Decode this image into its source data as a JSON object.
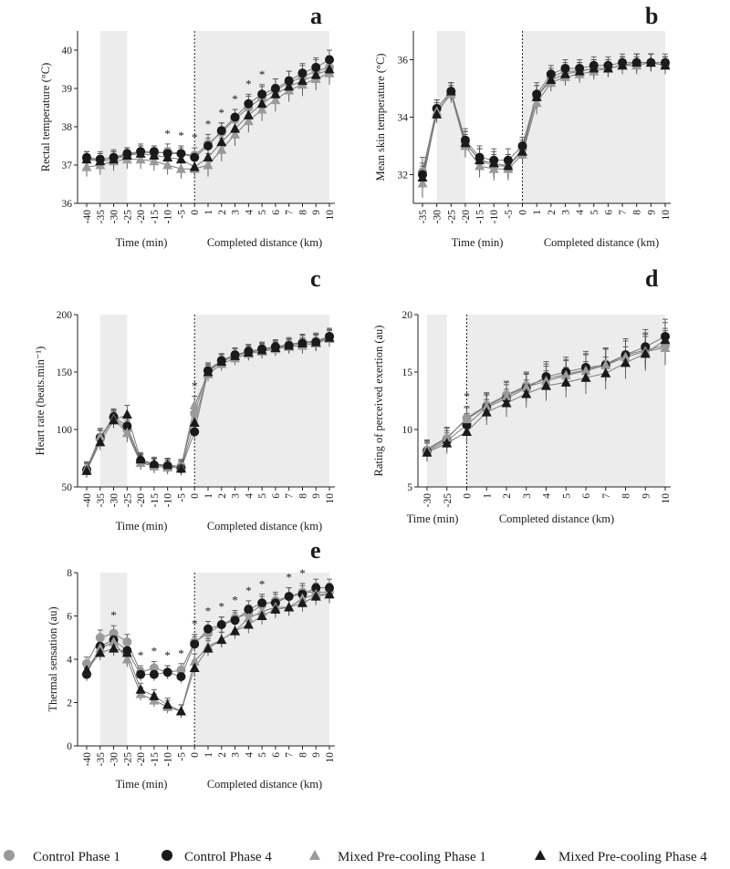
{
  "chart_data": [
    {
      "id": "a",
      "type": "line",
      "panel_label": "a",
      "ylabel": "Rectal temperature (°C)",
      "xlabel_time": "Time (min)",
      "xlabel_distance": "Completed distance (km)",
      "ylim": [
        36,
        40.5
      ],
      "yticks": [
        36,
        37,
        38,
        39,
        40
      ],
      "categories": [
        "-40",
        "-35",
        "-30",
        "-25",
        "-20",
        "-15",
        "-10",
        "-5",
        "0",
        "1",
        "2",
        "3",
        "4",
        "5",
        "6",
        "7",
        "8",
        "9",
        "10"
      ],
      "shaded_ranges": [
        [
          "-35",
          "-25"
        ],
        [
          "0",
          "10"
        ]
      ],
      "divider_at": "0",
      "significant": [
        "-10",
        "-5",
        "0",
        "1",
        "2",
        "3",
        "4",
        "5"
      ],
      "series": [
        {
          "name": "Control Phase 1",
          "values": [
            37.15,
            37.15,
            37.2,
            37.25,
            37.35,
            37.3,
            37.35,
            37.3,
            37.25,
            37.55,
            37.85,
            38.2,
            38.5,
            38.75,
            38.95,
            39.15,
            39.3,
            39.45,
            39.55
          ],
          "error": [
            0.2,
            0.2,
            0.2,
            0.2,
            0.2,
            0.2,
            0.2,
            0.2,
            0.2,
            0.25,
            0.25,
            0.25,
            0.3,
            0.3,
            0.3,
            0.3,
            0.3,
            0.3,
            0.3
          ]
        },
        {
          "name": "Control Phase 4",
          "values": [
            37.2,
            37.15,
            37.2,
            37.3,
            37.35,
            37.35,
            37.3,
            37.3,
            37.2,
            37.5,
            37.9,
            38.25,
            38.6,
            38.85,
            39.0,
            39.2,
            39.4,
            39.55,
            39.75
          ],
          "error": [
            0.15,
            0.15,
            0.15,
            0.15,
            0.15,
            0.15,
            0.15,
            0.15,
            0.15,
            0.2,
            0.2,
            0.2,
            0.25,
            0.25,
            0.25,
            0.25,
            0.25,
            0.25,
            0.25
          ]
        },
        {
          "name": "Mixed Pre-cooling Phase 1",
          "values": [
            36.95,
            37.0,
            37.1,
            37.15,
            37.15,
            37.1,
            37.0,
            36.9,
            36.9,
            37.0,
            37.4,
            37.8,
            38.15,
            38.45,
            38.7,
            38.95,
            39.1,
            39.25,
            39.4
          ],
          "error": [
            0.25,
            0.25,
            0.25,
            0.25,
            0.25,
            0.25,
            0.25,
            0.25,
            0.25,
            0.3,
            0.3,
            0.3,
            0.3,
            0.3,
            0.3,
            0.3,
            0.3,
            0.3,
            0.3
          ]
        },
        {
          "name": "Mixed Pre-cooling Phase 4",
          "values": [
            37.15,
            37.1,
            37.15,
            37.25,
            37.3,
            37.25,
            37.2,
            37.15,
            36.95,
            37.2,
            37.6,
            37.95,
            38.3,
            38.6,
            38.85,
            39.05,
            39.2,
            39.35,
            39.5
          ],
          "error": [
            0.2,
            0.2,
            0.2,
            0.2,
            0.2,
            0.2,
            0.2,
            0.2,
            0.2,
            0.25,
            0.25,
            0.25,
            0.25,
            0.25,
            0.25,
            0.25,
            0.25,
            0.25,
            0.25
          ]
        }
      ]
    },
    {
      "id": "b",
      "type": "line",
      "panel_label": "b",
      "ylabel": "Mean skin temperature (°C)",
      "xlabel_time": "Time (min)",
      "xlabel_distance": "Completed distance (km)",
      "ylim": [
        31,
        37
      ],
      "yticks": [
        32,
        34,
        36
      ],
      "categories": [
        "-35",
        "-30",
        "-25",
        "-20",
        "-15",
        "-10",
        "-5",
        "0",
        "1",
        "2",
        "3",
        "4",
        "5",
        "6",
        "7",
        "8",
        "9",
        "10"
      ],
      "shaded_ranges": [
        [
          "-30",
          "-20"
        ],
        [
          "0",
          "10"
        ]
      ],
      "divider_at": "0",
      "significant": [],
      "series": [
        {
          "name": "Control Phase 1",
          "values": [
            32.1,
            34.3,
            34.9,
            33.1,
            32.5,
            32.3,
            32.3,
            32.9,
            34.7,
            35.4,
            35.6,
            35.6,
            35.7,
            35.7,
            35.8,
            35.9,
            35.9,
            35.8
          ],
          "error": [
            0.5,
            0.3,
            0.3,
            0.4,
            0.4,
            0.4,
            0.4,
            0.3,
            0.4,
            0.3,
            0.3,
            0.3,
            0.3,
            0.3,
            0.3,
            0.3,
            0.3,
            0.3
          ]
        },
        {
          "name": "Control Phase 4",
          "values": [
            32.0,
            34.3,
            34.9,
            33.2,
            32.6,
            32.5,
            32.5,
            33.0,
            34.8,
            35.5,
            35.7,
            35.7,
            35.8,
            35.8,
            35.9,
            35.9,
            35.9,
            35.9
          ],
          "error": [
            0.4,
            0.3,
            0.3,
            0.4,
            0.4,
            0.4,
            0.4,
            0.3,
            0.4,
            0.3,
            0.3,
            0.3,
            0.3,
            0.3,
            0.3,
            0.3,
            0.3,
            0.3
          ]
        },
        {
          "name": "Mixed Pre-cooling Phase 1",
          "values": [
            31.7,
            34.2,
            34.8,
            33.0,
            32.3,
            32.2,
            32.2,
            32.7,
            34.5,
            35.2,
            35.4,
            35.5,
            35.6,
            35.7,
            35.8,
            35.8,
            35.9,
            35.8
          ],
          "error": [
            0.5,
            0.3,
            0.3,
            0.4,
            0.4,
            0.4,
            0.4,
            0.3,
            0.4,
            0.3,
            0.3,
            0.3,
            0.3,
            0.3,
            0.3,
            0.3,
            0.3,
            0.3
          ]
        },
        {
          "name": "Mixed Pre-cooling Phase 4",
          "values": [
            31.9,
            34.1,
            34.9,
            33.1,
            32.5,
            32.4,
            32.3,
            32.8,
            34.7,
            35.3,
            35.5,
            35.6,
            35.7,
            35.7,
            35.8,
            35.9,
            35.9,
            35.8
          ],
          "error": [
            0.4,
            0.3,
            0.3,
            0.4,
            0.4,
            0.4,
            0.4,
            0.3,
            0.4,
            0.3,
            0.3,
            0.3,
            0.3,
            0.3,
            0.3,
            0.3,
            0.3,
            0.3
          ]
        }
      ]
    },
    {
      "id": "c",
      "type": "line",
      "panel_label": "c",
      "ylabel": "Heart rate (beats.min⁻¹)",
      "xlabel_time": "Time (min)",
      "xlabel_distance": "Completed distance (km)",
      "ylim": [
        50,
        200
      ],
      "yticks": [
        50,
        100,
        150,
        200
      ],
      "categories": [
        "-40",
        "-35",
        "-30",
        "-25",
        "-20",
        "-15",
        "-10",
        "-5",
        "0",
        "1",
        "2",
        "3",
        "4",
        "5",
        "6",
        "7",
        "8",
        "9",
        "10"
      ],
      "shaded_ranges": [
        [
          "-35",
          "-25"
        ],
        [
          "0",
          "10"
        ]
      ],
      "divider_at": "0",
      "significant": [
        "0"
      ],
      "series": [
        {
          "name": "Control Phase 1",
          "values": [
            64,
            92,
            110,
            100,
            72,
            69,
            69,
            68,
            114,
            152,
            160,
            165,
            168,
            170,
            172,
            174,
            176,
            177,
            181
          ],
          "error": [
            6,
            7,
            7,
            8,
            6,
            6,
            6,
            6,
            8,
            6,
            6,
            6,
            6,
            6,
            6,
            6,
            7,
            7,
            7
          ]
        },
        {
          "name": "Control Phase 4",
          "values": [
            65,
            93,
            111,
            103,
            73,
            69,
            68,
            66,
            98,
            151,
            160,
            165,
            168,
            170,
            172,
            173,
            175,
            176,
            181
          ],
          "error": [
            6,
            7,
            7,
            8,
            6,
            6,
            6,
            6,
            8,
            6,
            6,
            6,
            6,
            6,
            6,
            6,
            7,
            7,
            7
          ]
        },
        {
          "name": "Mixed Pre-cooling Phase 1",
          "values": [
            66,
            94,
            109,
            97,
            71,
            68,
            67,
            67,
            121,
            148,
            157,
            162,
            166,
            168,
            170,
            172,
            173,
            175,
            179
          ],
          "error": [
            6,
            7,
            7,
            8,
            6,
            6,
            6,
            6,
            8,
            6,
            6,
            6,
            6,
            6,
            6,
            6,
            7,
            7,
            7
          ]
        },
        {
          "name": "Mixed Pre-cooling Phase 4",
          "values": [
            64,
            89,
            108,
            113,
            74,
            70,
            69,
            66,
            106,
            150,
            159,
            164,
            167,
            169,
            171,
            173,
            175,
            176,
            180
          ],
          "error": [
            6,
            7,
            7,
            8,
            6,
            6,
            6,
            6,
            8,
            6,
            6,
            6,
            6,
            6,
            6,
            6,
            7,
            7,
            7
          ]
        }
      ]
    },
    {
      "id": "d",
      "type": "line",
      "panel_label": "d",
      "ylabel": "Rating of perceived exertion (au)",
      "xlabel_time": "Time (min)",
      "xlabel_distance": "Completed distance (km)",
      "ylim": [
        5,
        20
      ],
      "yticks": [
        5,
        10,
        15,
        20
      ],
      "categories": [
        "-30",
        "-25",
        "0",
        "1",
        "2",
        "3",
        "4",
        "5",
        "6",
        "7",
        "8",
        "9",
        "10"
      ],
      "shaded_ranges": [
        [
          "-30",
          "-25"
        ],
        [
          "0",
          "10"
        ]
      ],
      "divider_at": "0",
      "significant": [
        "0"
      ],
      "series": [
        {
          "name": "Control Phase 1",
          "values": [
            8.2,
            9.2,
            11.0,
            12.1,
            13.0,
            13.8,
            14.4,
            14.8,
            15.2,
            15.7,
            16.5,
            16.9,
            17.3
          ],
          "error": [
            0.8,
            0.9,
            1.0,
            1.1,
            1.2,
            1.2,
            1.3,
            1.3,
            1.4,
            1.4,
            1.4,
            1.5,
            1.5
          ]
        },
        {
          "name": "Control Phase 4",
          "values": [
            8.1,
            9.0,
            10.4,
            11.9,
            12.7,
            13.6,
            14.6,
            15.0,
            15.4,
            15.6,
            16.5,
            17.2,
            18.1
          ],
          "error": [
            0.8,
            0.9,
            1.0,
            1.1,
            1.2,
            1.2,
            1.3,
            1.3,
            1.4,
            1.4,
            1.4,
            1.5,
            1.5
          ]
        },
        {
          "name": "Mixed Pre-cooling Phase 1",
          "values": [
            8.3,
            9.3,
            10.9,
            12.0,
            12.9,
            13.7,
            14.2,
            14.7,
            15.1,
            15.6,
            16.3,
            16.8,
            17.1
          ],
          "error": [
            0.8,
            0.9,
            1.0,
            1.1,
            1.2,
            1.2,
            1.3,
            1.3,
            1.4,
            1.4,
            1.4,
            1.5,
            1.5
          ]
        },
        {
          "name": "Mixed Pre-cooling Phase 4",
          "values": [
            8.0,
            8.8,
            9.8,
            11.5,
            12.3,
            13.1,
            13.8,
            14.1,
            14.5,
            14.9,
            15.8,
            16.6,
            17.8
          ],
          "error": [
            0.8,
            0.9,
            1.0,
            1.1,
            1.2,
            1.2,
            1.3,
            1.3,
            1.4,
            1.4,
            1.4,
            1.5,
            1.5
          ]
        }
      ]
    },
    {
      "id": "e",
      "type": "line",
      "panel_label": "e",
      "ylabel": "Thermal  sensation (au)",
      "xlabel_time": "Time (min)",
      "xlabel_distance": "Completed distance (km)",
      "ylim": [
        0,
        8
      ],
      "yticks": [
        0,
        2,
        4,
        6,
        8
      ],
      "categories": [
        "-40",
        "-35",
        "-30",
        "-25",
        "-20",
        "-15",
        "-10",
        "-5",
        "0",
        "1",
        "2",
        "3",
        "4",
        "5",
        "6",
        "7",
        "8",
        "9",
        "10"
      ],
      "shaded_ranges": [
        [
          "-35",
          "-25"
        ],
        [
          "0",
          "10"
        ]
      ],
      "divider_at": "0",
      "significant": [
        "-30",
        "-20",
        "-15",
        "-10",
        "-5",
        "0",
        "1",
        "2",
        "3",
        "4",
        "5",
        "7",
        "8"
      ],
      "series": [
        {
          "name": "Control Phase 1",
          "values": [
            3.8,
            5.0,
            5.2,
            4.8,
            3.4,
            3.6,
            3.4,
            3.5,
            4.8,
            5.2,
            5.6,
            5.9,
            6.1,
            6.5,
            6.7,
            6.9,
            7.1,
            7.1,
            7.1
          ],
          "error": [
            0.3,
            0.35,
            0.35,
            0.35,
            0.3,
            0.3,
            0.3,
            0.3,
            0.35,
            0.35,
            0.35,
            0.35,
            0.4,
            0.4,
            0.4,
            0.4,
            0.4,
            0.4,
            0.4
          ]
        },
        {
          "name": "Control Phase 4",
          "values": [
            3.3,
            4.6,
            4.9,
            4.4,
            3.3,
            3.3,
            3.4,
            3.2,
            4.7,
            5.4,
            5.6,
            5.8,
            6.3,
            6.6,
            6.6,
            6.9,
            7.0,
            7.3,
            7.3
          ],
          "error": [
            0.3,
            0.35,
            0.35,
            0.35,
            0.3,
            0.3,
            0.3,
            0.3,
            0.35,
            0.35,
            0.35,
            0.35,
            0.4,
            0.4,
            0.4,
            0.4,
            0.4,
            0.4,
            0.4
          ]
        },
        {
          "name": "Mixed Pre-cooling Phase 1",
          "values": [
            3.5,
            4.5,
            4.8,
            4.0,
            2.4,
            2.1,
            1.8,
            1.6,
            3.9,
            4.6,
            4.9,
            5.3,
            5.9,
            6.2,
            6.4,
            6.4,
            6.8,
            7.0,
            7.0
          ],
          "error": [
            0.3,
            0.35,
            0.35,
            0.35,
            0.3,
            0.3,
            0.3,
            0.3,
            0.35,
            0.35,
            0.35,
            0.35,
            0.4,
            0.4,
            0.4,
            0.4,
            0.4,
            0.4,
            0.4
          ]
        },
        {
          "name": "Mixed Pre-cooling Phase 4",
          "values": [
            3.5,
            4.3,
            4.5,
            4.3,
            2.6,
            2.3,
            1.9,
            1.6,
            3.6,
            4.5,
            4.9,
            5.3,
            5.6,
            6.0,
            6.3,
            6.4,
            6.6,
            6.9,
            7.0
          ],
          "error": [
            0.3,
            0.35,
            0.35,
            0.35,
            0.3,
            0.3,
            0.3,
            0.3,
            0.35,
            0.35,
            0.35,
            0.35,
            0.4,
            0.4,
            0.4,
            0.4,
            0.4,
            0.4,
            0.4
          ]
        }
      ]
    }
  ],
  "legend": {
    "items": [
      {
        "label": "Control Phase 1",
        "marker": "circle",
        "color": "#9a9a9a"
      },
      {
        "label": "Control Phase 4",
        "marker": "circle",
        "color": "#1a1a1a"
      },
      {
        "label": "Mixed Pre-cooling Phase 1",
        "marker": "triangle",
        "color": "#9a9a9a"
      },
      {
        "label": "Mixed Pre-cooling Phase 4",
        "marker": "triangle",
        "color": "#1a1a1a"
      }
    ]
  },
  "significance_symbol": "*",
  "colors": {
    "shade": "#ececec",
    "line": "#7a7a7a",
    "light": "#9a9a9a",
    "dark": "#1a1a1a"
  }
}
